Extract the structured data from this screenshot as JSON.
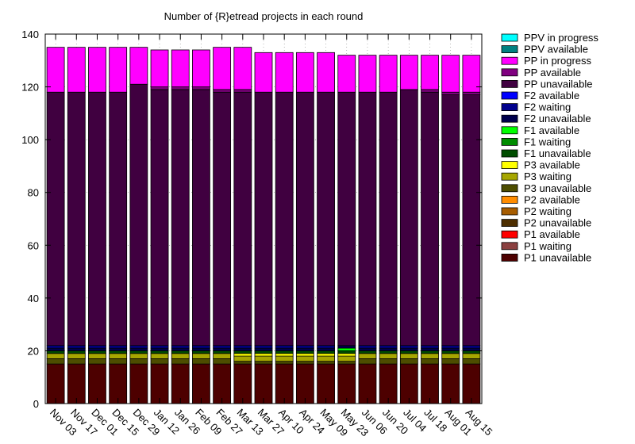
{
  "chart_data": {
    "type": "bar",
    "stacked": true,
    "title": "Number of {R}etread projects in each round",
    "xlabel": "",
    "ylabel": "",
    "ylim": [
      0,
      140
    ],
    "yticks": [
      0,
      20,
      40,
      60,
      80,
      100,
      120,
      140
    ],
    "grid": true,
    "legend_position": "right",
    "categories": [
      "Nov 03",
      "Nov 17",
      "Dec 01",
      "Dec 15",
      "Dec 29",
      "Jan 12",
      "Jan 26",
      "Feb 09",
      "Feb 27",
      "Mar 13",
      "Mar 27",
      "Apr 10",
      "Apr 24",
      "May 09",
      "May 23",
      "Jun 06",
      "Jun 20",
      "Jul 04",
      "Jul 18",
      "Aug 01",
      "Aug 15"
    ],
    "series": [
      {
        "name": "P1 unavailable",
        "color": "#4d0000",
        "values": [
          15,
          15,
          15,
          15,
          15,
          15,
          15,
          15,
          15,
          15,
          15,
          15,
          15,
          15,
          15,
          15,
          15,
          15,
          15,
          15,
          15
        ]
      },
      {
        "name": "P1 waiting",
        "color": "#8b4040",
        "values": [
          0,
          0,
          0,
          0,
          0,
          0,
          0,
          0,
          0,
          0,
          0,
          0,
          0,
          0,
          0,
          0,
          0,
          0,
          0,
          0,
          0
        ]
      },
      {
        "name": "P1 available",
        "color": "#ff0000",
        "values": [
          0,
          0,
          0,
          0,
          0,
          0,
          0,
          0,
          0,
          0,
          0,
          0,
          0,
          0,
          0,
          0,
          0,
          0,
          0,
          0,
          0
        ]
      },
      {
        "name": "P2 unavailable",
        "color": "#4d2e00",
        "values": [
          0,
          0,
          0,
          0,
          0,
          0,
          0,
          0,
          0,
          0,
          0,
          0,
          0,
          0,
          0,
          0,
          0,
          0,
          0,
          0,
          0
        ]
      },
      {
        "name": "P2 waiting",
        "color": "#a65c00",
        "values": [
          0,
          0,
          0,
          0,
          0,
          0,
          0,
          0,
          0,
          0,
          0,
          0,
          0,
          0,
          0,
          0,
          0,
          0,
          0,
          0,
          0
        ]
      },
      {
        "name": "P2 available",
        "color": "#ff8c00",
        "values": [
          0,
          0,
          0,
          0,
          0,
          0,
          0,
          0,
          0,
          0,
          0,
          0,
          0,
          0,
          0,
          0,
          0,
          0,
          0,
          0,
          0
        ]
      },
      {
        "name": "P3 unavailable",
        "color": "#4d4d00",
        "values": [
          2,
          2,
          2,
          2,
          2,
          2,
          2,
          2,
          2,
          1,
          1,
          1,
          1,
          1,
          1,
          2,
          2,
          2,
          2,
          2,
          2
        ]
      },
      {
        "name": "P3 waiting",
        "color": "#a6a600",
        "values": [
          2,
          2,
          2,
          2,
          2,
          2,
          2,
          2,
          2,
          2,
          2,
          2,
          2,
          2,
          2,
          2,
          2,
          2,
          2,
          2,
          2
        ]
      },
      {
        "name": "P3 available",
        "color": "#ffff00",
        "values": [
          0,
          0,
          0,
          0,
          0,
          0,
          0,
          0,
          0,
          1,
          1,
          1,
          1,
          1,
          1,
          0,
          0,
          0,
          0,
          0,
          0
        ]
      },
      {
        "name": "F1 unavailable",
        "color": "#004d00",
        "values": [
          1,
          1,
          1,
          1,
          1,
          1,
          1,
          1,
          1,
          1,
          1,
          1,
          1,
          1,
          1,
          1,
          1,
          1,
          1,
          1,
          1
        ]
      },
      {
        "name": "F1 waiting",
        "color": "#008c00",
        "values": [
          0,
          0,
          0,
          0,
          0,
          0,
          0,
          0,
          0,
          0,
          0,
          0,
          0,
          0,
          0,
          0,
          0,
          0,
          0,
          0,
          0
        ]
      },
      {
        "name": "F1 available",
        "color": "#00ff00",
        "values": [
          0,
          0,
          0,
          0,
          0,
          0,
          0,
          0,
          0,
          0,
          0,
          0,
          0,
          0,
          1,
          0,
          0,
          0,
          0,
          0,
          0
        ]
      },
      {
        "name": "F2 unavailable",
        "color": "#00004d",
        "values": [
          1,
          1,
          1,
          1,
          1,
          1,
          1,
          1,
          1,
          1,
          1,
          1,
          1,
          1,
          1,
          1,
          1,
          1,
          1,
          1,
          1
        ]
      },
      {
        "name": "F2 waiting",
        "color": "#00008c",
        "values": [
          1,
          1,
          1,
          1,
          1,
          1,
          1,
          1,
          1,
          1,
          1,
          1,
          1,
          1,
          0,
          1,
          1,
          1,
          1,
          1,
          1
        ]
      },
      {
        "name": "F2 available",
        "color": "#0000ff",
        "values": [
          0,
          0,
          0,
          0,
          0,
          0,
          0,
          0,
          0,
          0,
          0,
          0,
          0,
          0,
          0,
          0,
          0,
          0,
          0,
          0,
          0
        ]
      },
      {
        "name": "PP unavailable",
        "color": "#400040",
        "values": [
          96,
          96,
          96,
          96,
          99,
          97,
          97,
          97,
          96,
          96,
          96,
          96,
          96,
          96,
          96,
          96,
          96,
          97,
          96,
          95,
          95
        ]
      },
      {
        "name": "PP available",
        "color": "#800080",
        "values": [
          0,
          0,
          0,
          0,
          0,
          1,
          1,
          1,
          1,
          1,
          0,
          0,
          0,
          0,
          0,
          0,
          0,
          0,
          1,
          1,
          1
        ]
      },
      {
        "name": "PP in progress",
        "color": "#ff00ff",
        "values": [
          17,
          17,
          17,
          17,
          14,
          14,
          14,
          14,
          16,
          16,
          15,
          15,
          15,
          15,
          14,
          14,
          14,
          13,
          13,
          14,
          14
        ]
      },
      {
        "name": "PPV unavailable",
        "color": "#004d4d",
        "values": [
          0,
          0,
          0,
          0,
          0,
          0,
          0,
          0,
          0,
          0,
          0,
          0,
          0,
          0,
          0,
          0,
          0,
          0,
          0,
          0,
          0
        ]
      },
      {
        "name": "PPV available",
        "color": "#008080",
        "values": [
          0,
          0,
          0,
          0,
          0,
          0,
          0,
          0,
          0,
          0,
          0,
          0,
          0,
          0,
          0,
          0,
          0,
          0,
          0,
          0,
          0
        ]
      },
      {
        "name": "PPV in progress",
        "color": "#00ffff",
        "values": [
          0,
          0,
          0,
          0,
          0,
          0,
          0,
          0,
          0,
          0,
          0,
          0,
          0,
          0,
          0,
          0,
          0,
          0,
          0,
          0,
          0
        ]
      }
    ],
    "legend_order": [
      "PPV in progress",
      "PPV available",
      "PP in progress",
      "PP available",
      "PP unavailable",
      "F2 available",
      "F2 waiting",
      "F2 unavailable",
      "F1 available",
      "F1 waiting",
      "F1 unavailable",
      "P3 available",
      "P3 waiting",
      "P3 unavailable",
      "P2 available",
      "P2 waiting",
      "P2 unavailable",
      "P1 available",
      "P1 waiting",
      "P1 unavailable"
    ]
  }
}
